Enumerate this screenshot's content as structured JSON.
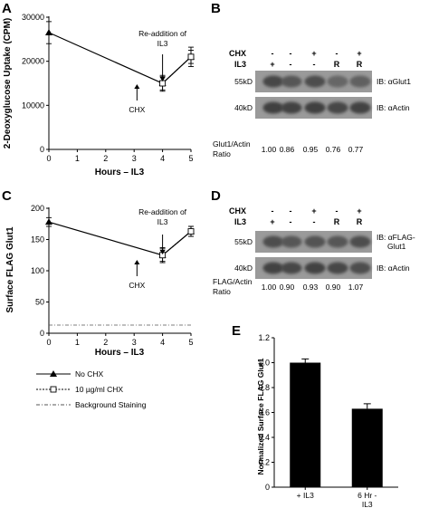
{
  "panels": {
    "A": {
      "letter": "A"
    },
    "B": {
      "letter": "B"
    },
    "C": {
      "letter": "C"
    },
    "D": {
      "letter": "D"
    },
    "E": {
      "letter": "E"
    }
  },
  "chart_data": [
    {
      "panel": "A",
      "type": "line",
      "xlabel": "Hours – IL3",
      "ylabel": "2-Deoxyglucose Uptake (CPM)",
      "xlim": [
        0,
        5
      ],
      "ylim": [
        0,
        30000
      ],
      "xticks": [
        "0",
        "1",
        "2",
        "3",
        "4",
        "5"
      ],
      "yticks": [
        "0",
        "10000",
        "20000",
        "30000"
      ],
      "series": [
        {
          "name": "No CHX",
          "style": "solid-triangle",
          "x": [
            0,
            4,
            5
          ],
          "y": [
            26500,
            15000,
            21000
          ],
          "err": [
            2500,
            1800,
            2200
          ]
        },
        {
          "name": "10 µg/ml CHX",
          "style": "dashed-square",
          "x": [
            4,
            5
          ],
          "y": [
            15000,
            21000
          ],
          "err": [
            1500,
            1500
          ]
        }
      ],
      "annotations": [
        {
          "text": "CHX",
          "x": 3.1
        },
        {
          "text": "Re-addition of IL3",
          "x": 4
        }
      ]
    },
    {
      "panel": "C",
      "type": "line",
      "xlabel": "Hours – IL3",
      "ylabel": "Surface FLAG Glut1",
      "xlim": [
        0,
        5
      ],
      "ylim": [
        0,
        200
      ],
      "xticks": [
        "0",
        "1",
        "2",
        "3",
        "4",
        "5"
      ],
      "yticks": [
        "0",
        "50",
        "100",
        "150",
        "200"
      ],
      "series": [
        {
          "name": "No CHX",
          "style": "solid-triangle",
          "x": [
            0,
            4,
            5
          ],
          "y": [
            178,
            125,
            163
          ],
          "err": [
            7,
            12,
            8
          ]
        },
        {
          "name": "10 µg/ml CHX",
          "style": "dashed-square",
          "x": [
            4,
            5
          ],
          "y": [
            125,
            163
          ],
          "err": [
            10,
            8
          ]
        },
        {
          "name": "Background Staining",
          "style": "dashdot",
          "x": [
            0,
            5
          ],
          "y": [
            13,
            13
          ],
          "err": [
            0,
            0
          ]
        }
      ],
      "annotations": [
        {
          "text": "CHX",
          "x": 3.1
        },
        {
          "text": "Re-addition of IL3",
          "x": 4
        }
      ]
    },
    {
      "panel": "E",
      "type": "bar",
      "ylabel": "Normalized Surface FLAG Glut1",
      "categories": [
        "+ IL3",
        "6 Hr - IL3"
      ],
      "values": [
        1.0,
        0.63
      ],
      "err": [
        0.03,
        0.04
      ],
      "ylim": [
        0,
        1.2
      ],
      "yticks": [
        "0",
        "0.2",
        "0.4",
        "0.6",
        "0.8",
        "1.0",
        "1.2"
      ]
    }
  ],
  "legend": {
    "items": [
      {
        "label": "No CHX",
        "style": "solid-triangle"
      },
      {
        "label": "10 µg/ml CHX",
        "style": "dashed-square"
      },
      {
        "label": "Background Staining",
        "style": "dashdot"
      }
    ]
  },
  "blots": [
    {
      "panel": "B",
      "rows": [
        {
          "label": "CHX",
          "values": [
            "-",
            "-",
            "+",
            "-",
            "+"
          ]
        },
        {
          "label": "IL3",
          "values": [
            "+",
            "-",
            "-",
            "R",
            "R"
          ]
        }
      ],
      "bands": [
        {
          "kd": "55kD",
          "ib": "IB: αGlut1",
          "tone": [
            0.72,
            0.66,
            0.7,
            0.6,
            0.62
          ]
        },
        {
          "kd": "40kD",
          "ib": "IB: αActin",
          "tone": [
            0.75,
            0.74,
            0.75,
            0.72,
            0.74
          ]
        }
      ],
      "ratio_label": [
        "Glut1/Actin",
        "Ratio"
      ],
      "ratios": [
        "1.00",
        "0.86",
        "0.95",
        "0.76",
        "0.77"
      ]
    },
    {
      "panel": "D",
      "rows": [
        {
          "label": "CHX",
          "values": [
            "-",
            "-",
            "+",
            "-",
            "+"
          ]
        },
        {
          "label": "IL3",
          "values": [
            "+",
            "-",
            "-",
            "R",
            "R"
          ]
        }
      ],
      "bands": [
        {
          "kd": "55kD",
          "ib": "IB: αFLAG-Glut1",
          "tone": [
            0.7,
            0.66,
            0.68,
            0.66,
            0.7
          ]
        },
        {
          "kd": "40kD",
          "ib": "IB: αActin",
          "tone": [
            0.74,
            0.72,
            0.74,
            0.72,
            0.7
          ]
        }
      ],
      "ratio_label": [
        "FLAG/Actin",
        "Ratio"
      ],
      "ratios": [
        "1.00",
        "0.90",
        "0.93",
        "0.90",
        "1.07"
      ]
    }
  ]
}
